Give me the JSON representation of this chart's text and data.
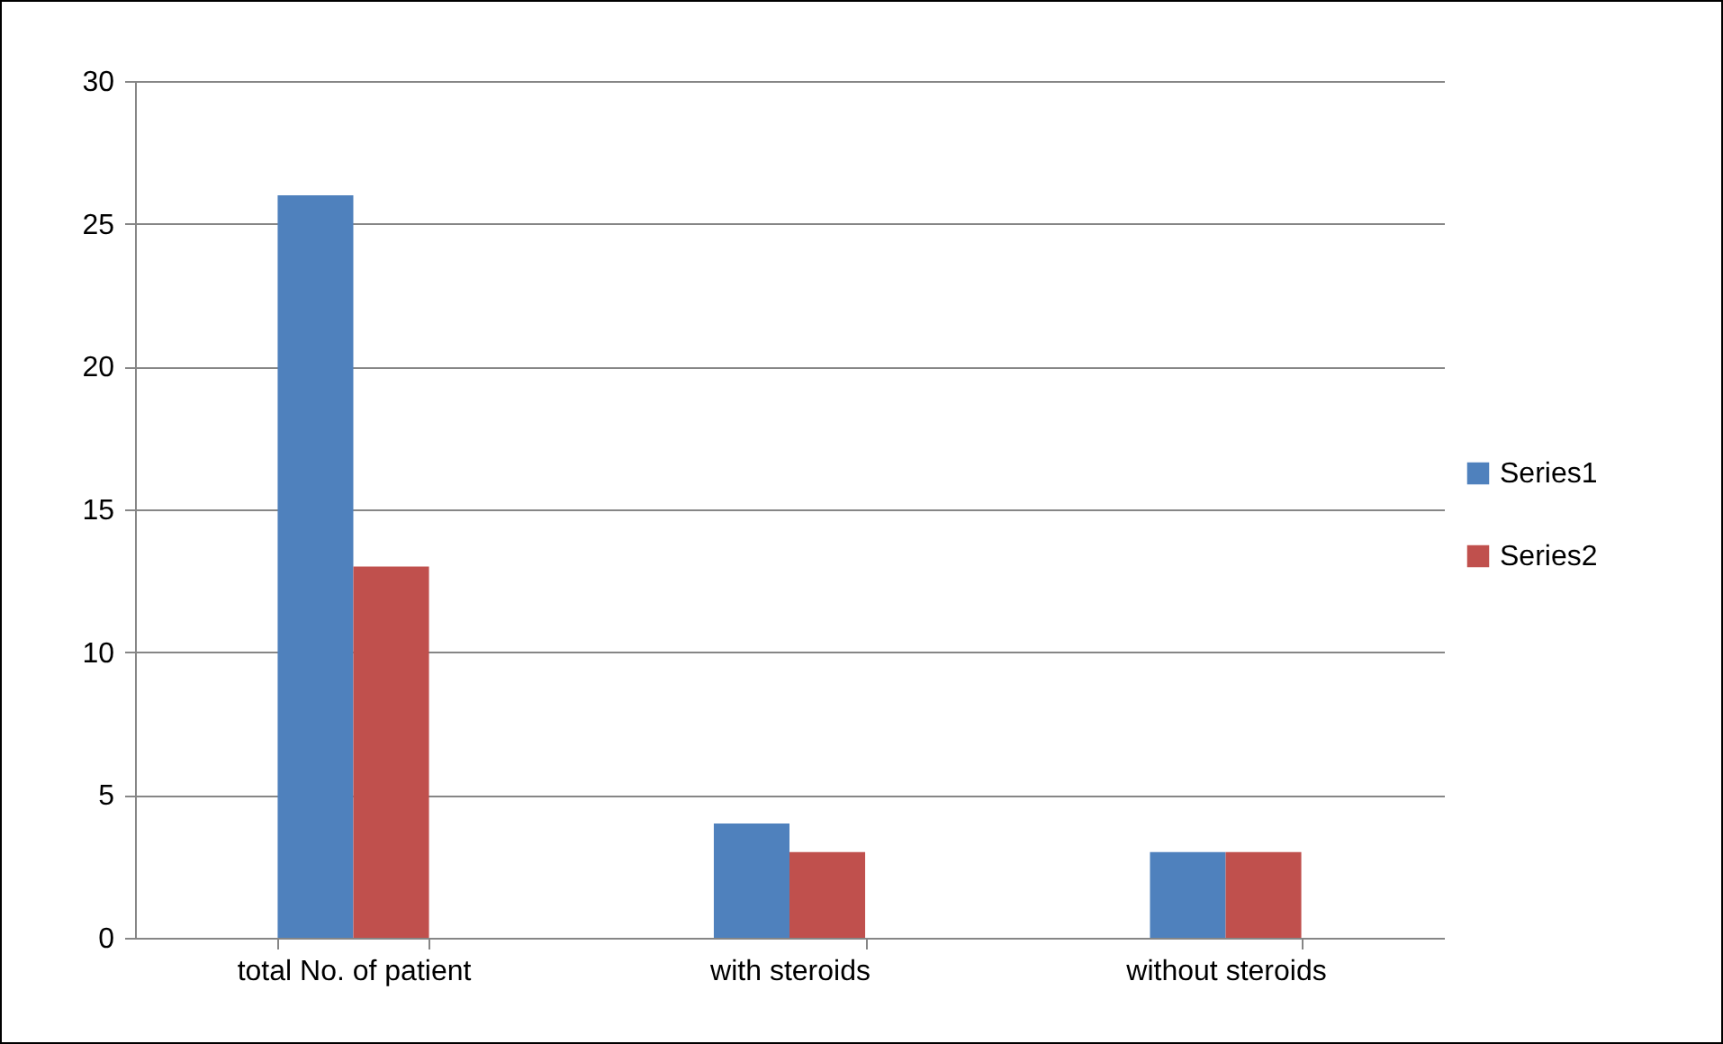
{
  "chart_data": {
    "type": "bar",
    "categories": [
      "total No. of patient",
      "with steroids",
      "without steroids"
    ],
    "series": [
      {
        "name": "Series1",
        "color": "#4f81bd",
        "values": [
          26,
          4,
          3
        ]
      },
      {
        "name": "Series2",
        "color": "#c0504d",
        "values": [
          13,
          3,
          3
        ]
      }
    ],
    "ylim": [
      0,
      30
    ],
    "yticks": [
      0,
      5,
      10,
      15,
      20,
      25,
      30
    ],
    "grid": "y",
    "legend": "right"
  }
}
